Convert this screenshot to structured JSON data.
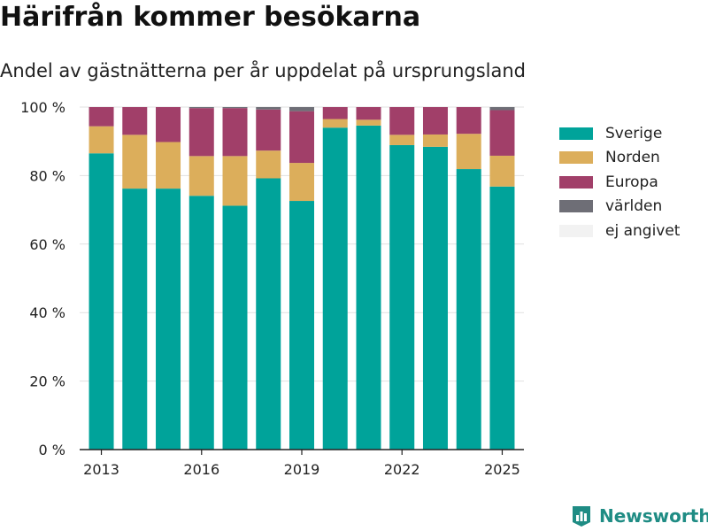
{
  "header": {
    "title": "Härifrån kommer besökarna",
    "subtitle": "Andel av gästnätterna per år uppdelat på ursprungsland"
  },
  "brand": {
    "name": "Newsworthy",
    "icon": "bar-chart-logo-icon",
    "color": "#1f8c84"
  },
  "colors": {
    "grid": "#e1e1e1",
    "axis": "#222222",
    "text": "#222222"
  },
  "chart_data": {
    "type": "bar",
    "stacked": true,
    "title": "Härifrån kommer besökarna",
    "subtitle": "Andel av gästnätterna per år uppdelat på ursprungsland",
    "categories": [
      2013,
      2014,
      2015,
      2016,
      2017,
      2018,
      2019,
      2020,
      2021,
      2022,
      2023,
      2024,
      2025
    ],
    "series": [
      {
        "name": "Sverige",
        "color": "#00a39a",
        "values": [
          86.5,
          76.2,
          76.2,
          74.1,
          71.2,
          79.2,
          72.6,
          94.0,
          94.6,
          88.9,
          88.4,
          81.9,
          76.8
        ]
      },
      {
        "name": "Norden",
        "color": "#dcae5b",
        "values": [
          7.9,
          15.7,
          13.6,
          11.6,
          14.5,
          8.1,
          11.1,
          2.5,
          1.7,
          3.0,
          3.6,
          10.3,
          9.0
        ]
      },
      {
        "name": "Europa",
        "color": "#a13f69",
        "values": [
          5.6,
          8.1,
          10.2,
          14.0,
          14.0,
          12.0,
          15.1,
          3.5,
          3.7,
          8.1,
          8.0,
          7.8,
          13.3
        ]
      },
      {
        "name": "världen",
        "color": "#6e6e76",
        "values": [
          0.0,
          0.0,
          0.0,
          0.3,
          0.3,
          0.7,
          1.2,
          0.0,
          0.0,
          0.0,
          0.0,
          0.0,
          0.9
        ]
      },
      {
        "name": "ej angivet",
        "color": "#f2f2f2",
        "values": [
          0,
          0,
          0,
          0,
          0,
          0,
          0,
          0,
          0,
          0,
          0,
          0,
          0
        ]
      }
    ],
    "ylim": [
      0,
      100
    ],
    "yticks": [
      0,
      20,
      40,
      60,
      80,
      100
    ],
    "ytick_labels": [
      "0 %",
      "20 %",
      "40 %",
      "60 %",
      "80 %",
      "100 %"
    ],
    "xticks": [
      2013,
      2016,
      2019,
      2022,
      2025
    ],
    "xtick_labels": [
      "2013",
      "2016",
      "2019",
      "2022",
      "2025"
    ],
    "xlabel": "",
    "ylabel": "",
    "grid": true,
    "legend_position": "right"
  }
}
